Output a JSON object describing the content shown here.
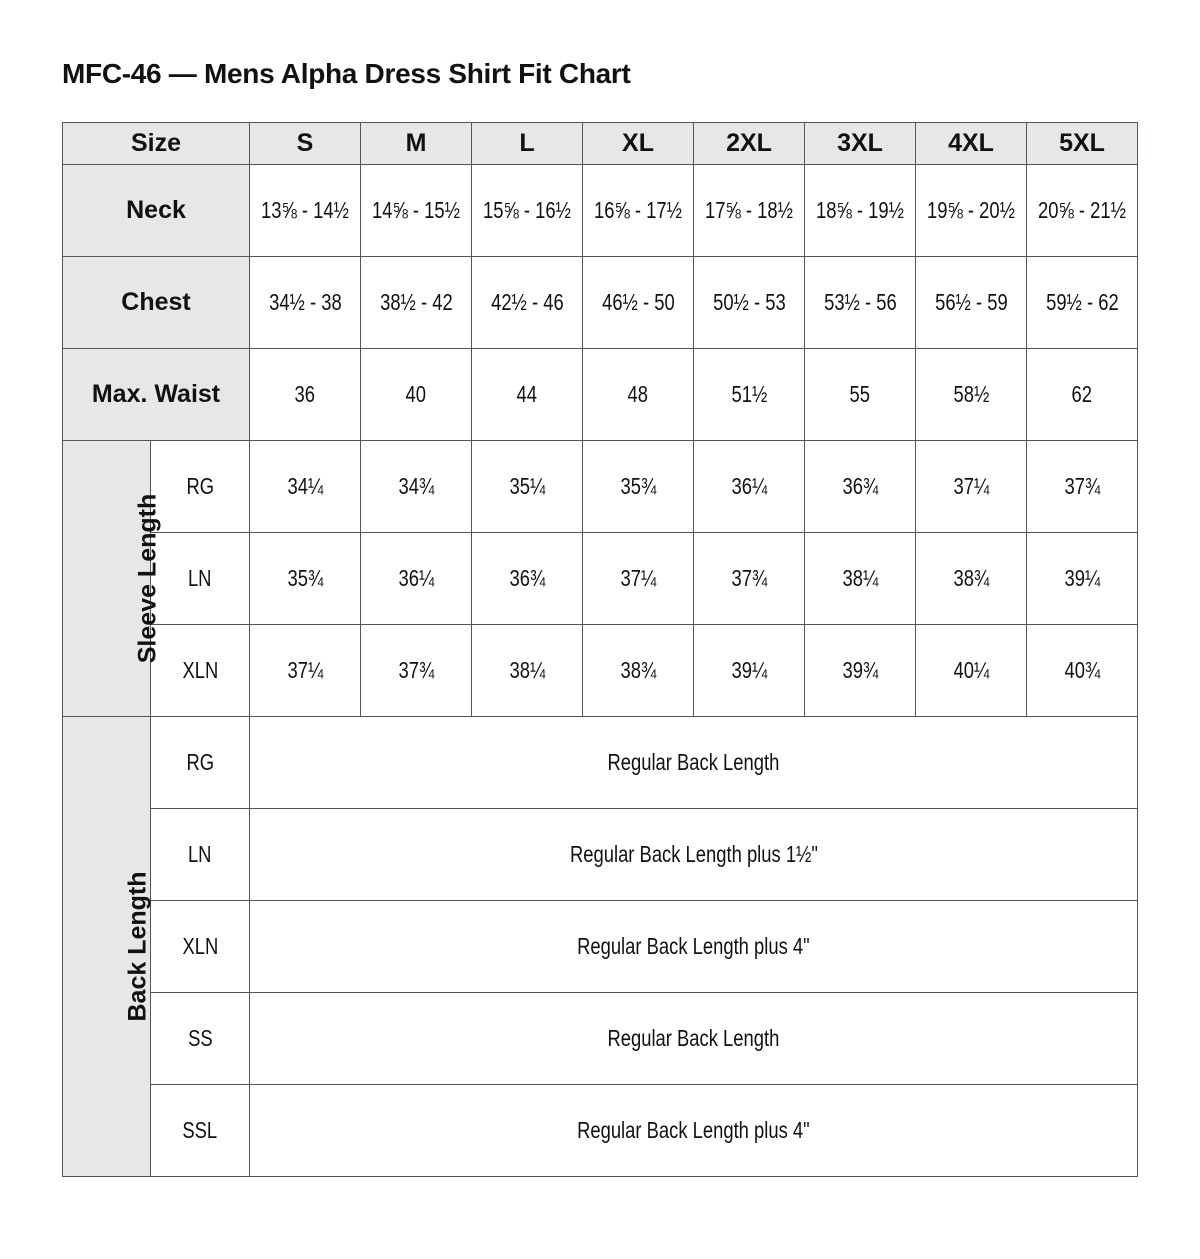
{
  "title": "MFC-46 — Mens Alpha Dress Shirt Fit Chart",
  "header_bg": "#e6e7e8",
  "size_label": "Size",
  "sizes": [
    "S",
    "M",
    "L",
    "XL",
    "2XL",
    "3XL",
    "4XL",
    "5XL"
  ],
  "rows": [
    {
      "label": "Neck",
      "values": [
        "13⅝ - 14½",
        "14⅝ - 15½",
        "15⅝ - 16½",
        "16⅝ - 17½",
        "17⅝ - 18½",
        "18⅝ - 19½",
        "19⅝ - 20½",
        "20⅝ - 21½"
      ]
    },
    {
      "label": "Chest",
      "values": [
        "34½ - 38",
        "38½ - 42",
        "42½ - 46",
        "46½ - 50",
        "50½ - 53",
        "53½ - 56",
        "56½ - 59",
        "59½ - 62"
      ]
    },
    {
      "label": "Max. Waist",
      "values": [
        "36",
        "40",
        "44",
        "48",
        "51½",
        "55",
        "58½",
        "62"
      ]
    }
  ],
  "sleeve": {
    "label": "Sleeve Length",
    "rows": [
      {
        "label": "RG",
        "values": [
          "34¼",
          "34¾",
          "35¼",
          "35¾",
          "36¼",
          "36¾",
          "37¼",
          "37¾"
        ]
      },
      {
        "label": "LN",
        "values": [
          "35¾",
          "36¼",
          "36¾",
          "37¼",
          "37¾",
          "38¼",
          "38¾",
          "39¼"
        ]
      },
      {
        "label": "XLN",
        "values": [
          "37¼",
          "37¾",
          "38¼",
          "38¾",
          "39¼",
          "39¾",
          "40¼",
          "40¾"
        ]
      }
    ]
  },
  "back": {
    "label": "Back Length",
    "rows": [
      {
        "label": "RG",
        "value": "Regular Back Length"
      },
      {
        "label": "LN",
        "value": "Regular Back Length plus 1½\""
      },
      {
        "label": "XLN",
        "value": "Regular Back Length plus 4\""
      },
      {
        "label": "SS",
        "value": "Regular Back Length"
      },
      {
        "label": "SSL",
        "value": "Regular Back Length plus 4\""
      }
    ]
  }
}
